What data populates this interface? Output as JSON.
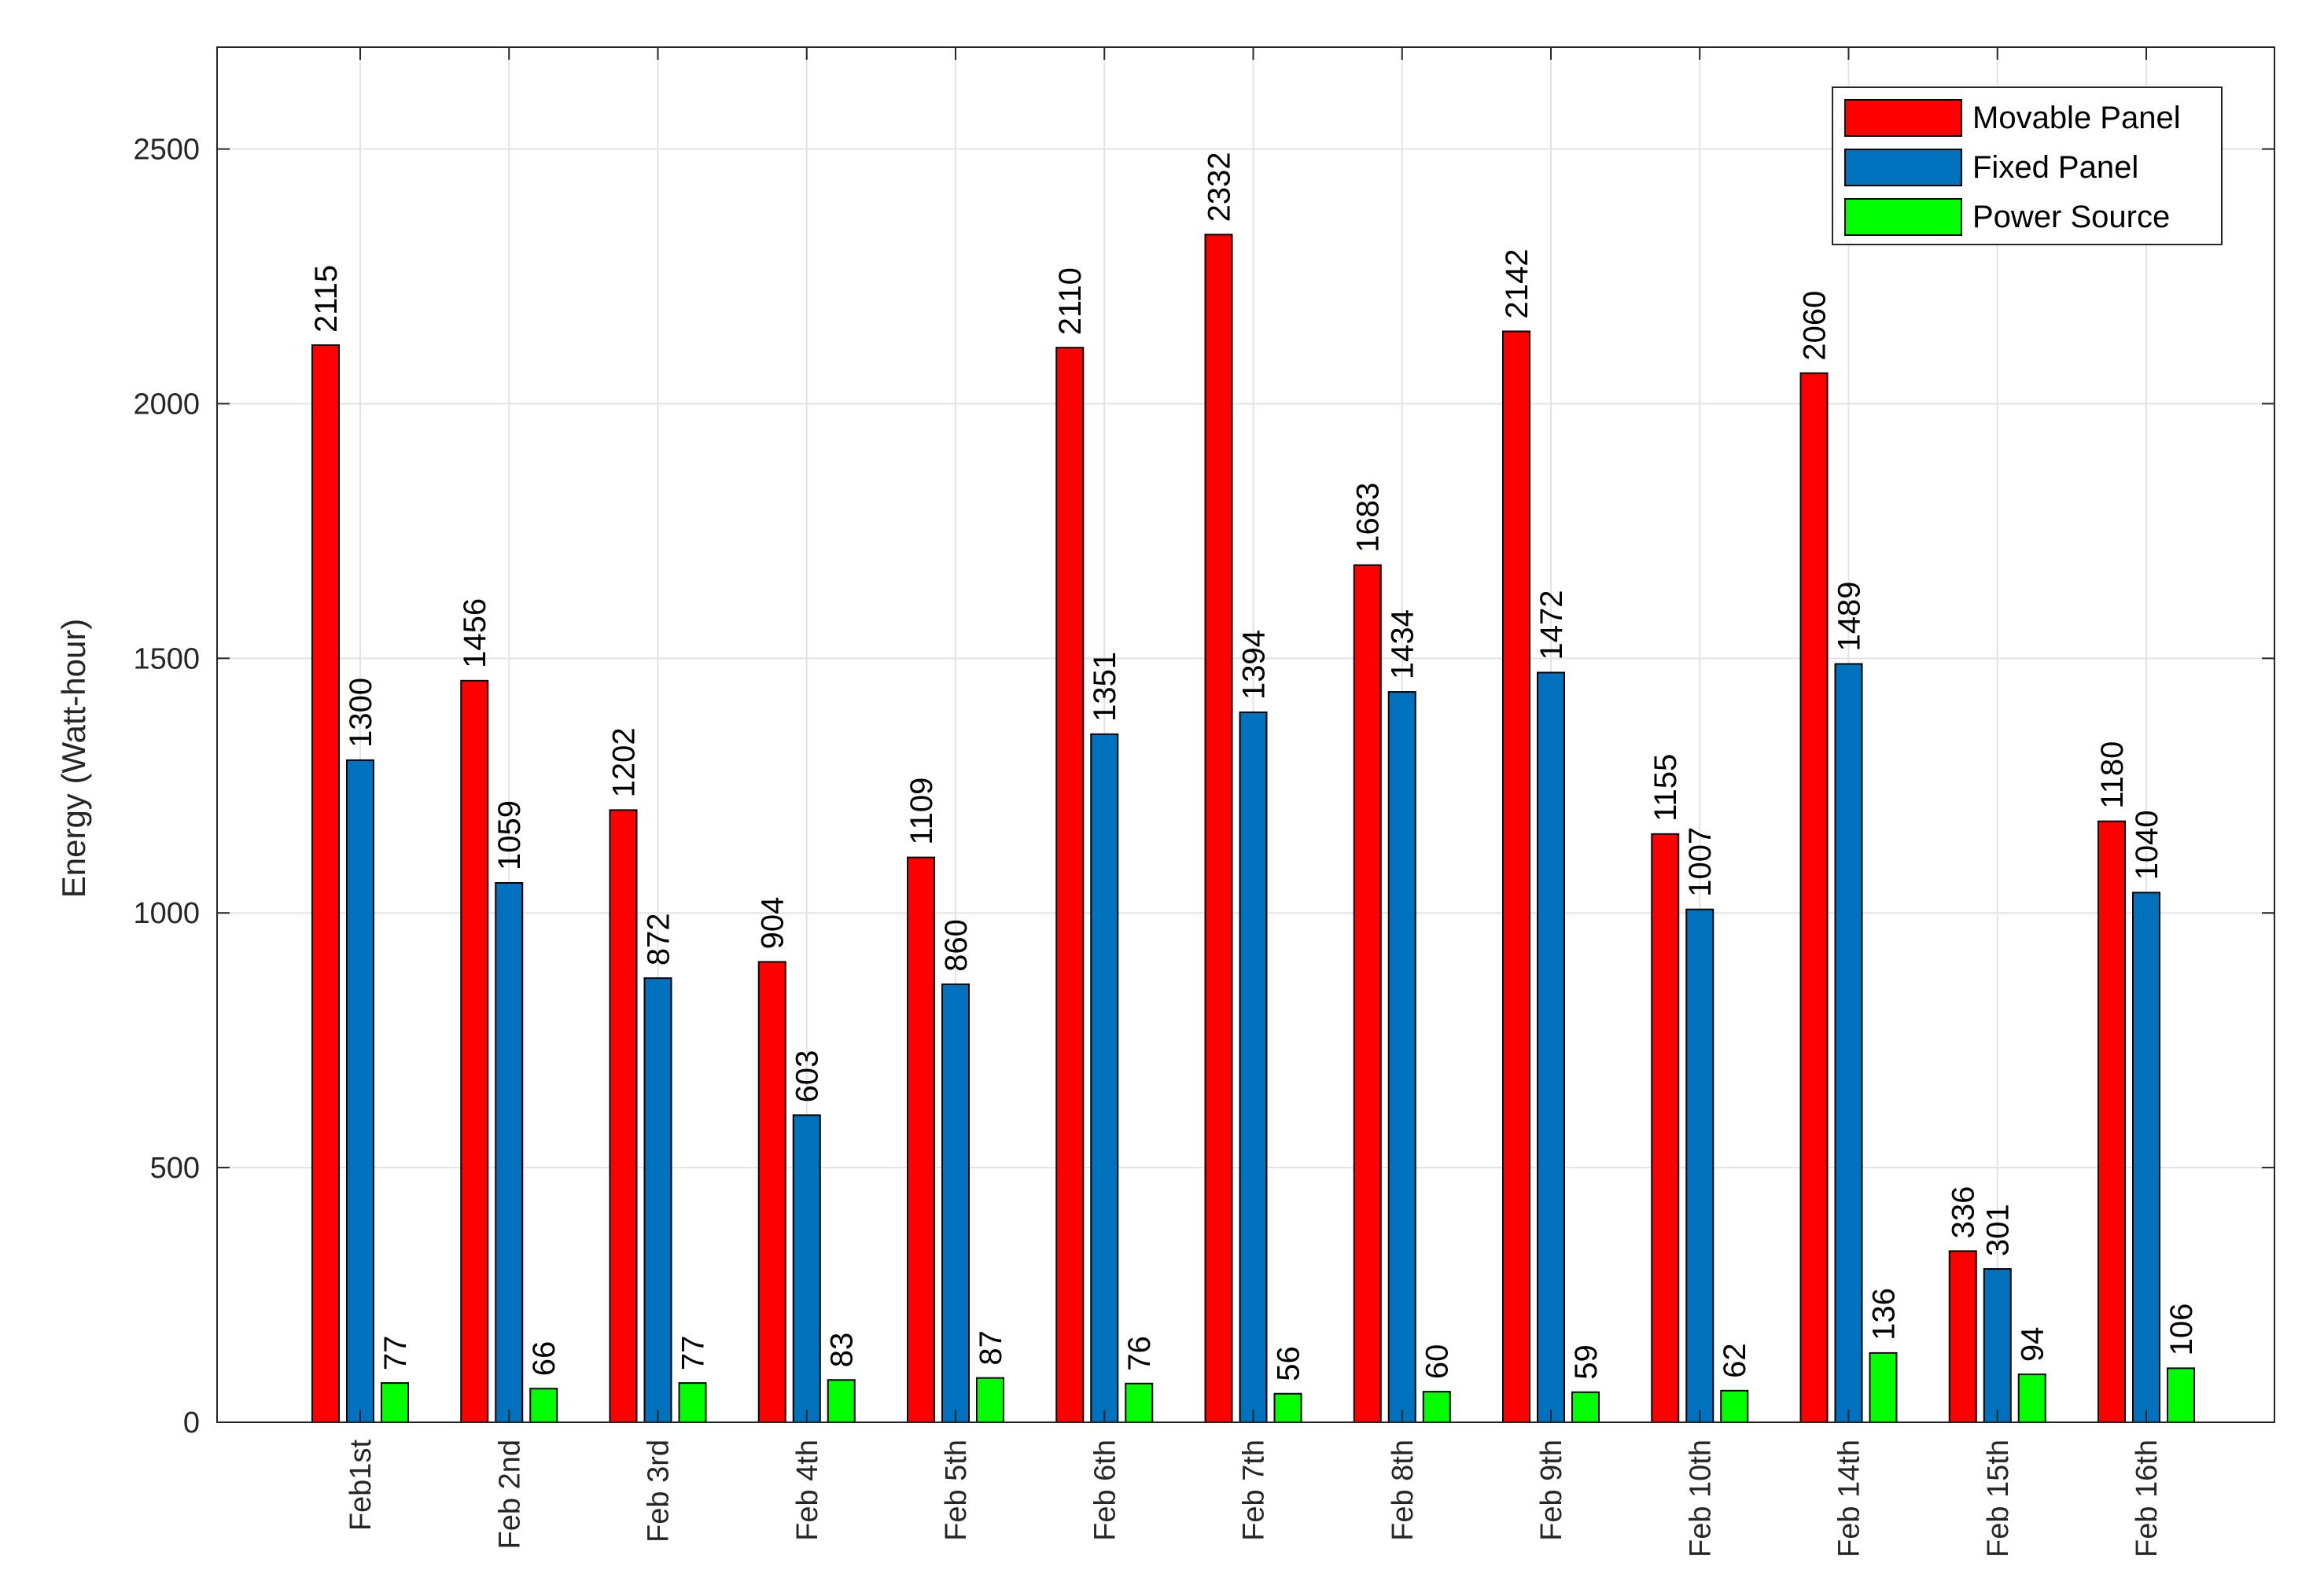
{
  "chart_data": {
    "type": "bar",
    "title": "",
    "xlabel": "",
    "ylabel": "Energy (Watt-hour)",
    "ylim": [
      0,
      2700
    ],
    "yticks": [
      0,
      500,
      1000,
      1500,
      2000,
      2500
    ],
    "grid": true,
    "legend_position": "top-right",
    "categories": [
      "Feb1st",
      "Feb 2nd",
      "Feb 3rd",
      "Feb 4th",
      "Feb 5th",
      "Feb 6th",
      "Feb 7th",
      "Feb 8th",
      "Feb 9th",
      "Feb 10th",
      "Feb 14th",
      "Feb 15th",
      "Feb 16th"
    ],
    "series": [
      {
        "name": "Movable Panel",
        "color": "#ff0000",
        "values": [
          2115,
          1456,
          1202,
          904,
          1109,
          2110,
          2332,
          1683,
          2142,
          1155,
          2060,
          336,
          1180
        ]
      },
      {
        "name": "Fixed Panel",
        "color": "#0072bd",
        "values": [
          1300,
          1059,
          872,
          603,
          860,
          1351,
          1394,
          1434,
          1472,
          1007,
          1489,
          301,
          1040
        ]
      },
      {
        "name": "Power Source",
        "color": "#00ff00",
        "values": [
          77,
          66,
          77,
          83,
          87,
          76,
          56,
          60,
          59,
          62,
          136,
          94,
          106
        ]
      }
    ]
  }
}
